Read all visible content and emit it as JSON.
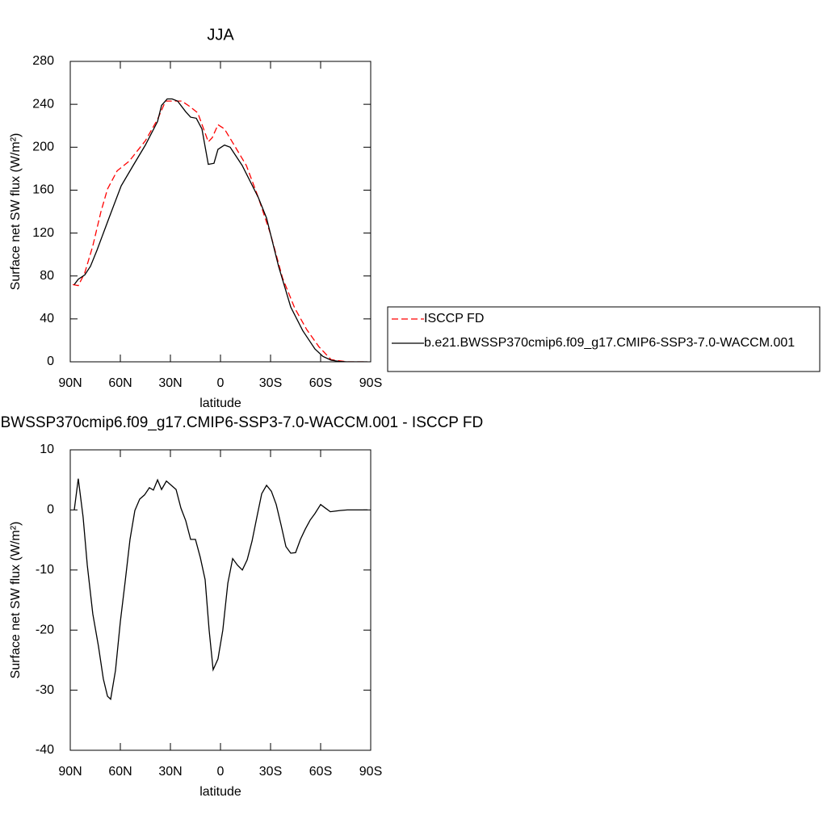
{
  "chart_data": [
    {
      "type": "line",
      "title": "JJA",
      "xlabel": "latitude",
      "ylabel": "Surface net SW flux (W/m²)",
      "xlim": [
        90,
        -90
      ],
      "xticks": [
        {
          "value": 90,
          "label": "90N"
        },
        {
          "value": 60,
          "label": "60N"
        },
        {
          "value": 30,
          "label": "30N"
        },
        0,
        {
          "value": -30,
          "label": "30S"
        },
        {
          "value": -60,
          "label": "60S"
        },
        {
          "value": -90,
          "label": "90S"
        }
      ],
      "ylim": [
        0,
        280
      ],
      "yticks": [
        0,
        40,
        80,
        120,
        160,
        200,
        240,
        280
      ],
      "legend": "right",
      "series": [
        {
          "name": "ISCCP FD",
          "color": "#ff0000",
          "linestyle": "dashed",
          "x": [
            88.5,
            85.2,
            81.3,
            76.5,
            71.6,
            67.7,
            61.9,
            54.7,
            45,
            37.7,
            32.9,
            28,
            23.2,
            18.4,
            13.6,
            7.3,
            4.9,
            1.5,
            -2.4,
            -8.2,
            -15.5,
            -22.7,
            -30,
            -37.2,
            -44.5,
            -51.7,
            -59,
            -66.3,
            -76,
            -88
          ],
          "values": [
            72,
            71,
            83,
            108,
            140,
            161,
            178,
            187,
            206,
            226,
            243,
            243,
            243,
            238,
            232,
            205,
            209,
            221,
            217,
            202,
            183,
            153,
            119,
            78,
            50,
            30,
            14,
            2,
            0,
            0
          ]
        },
        {
          "name": "b.e21.BWSSP370cmip6.f09_g17.CMIP6-SSP3-7.0-WACCM.001",
          "color": "#000000",
          "linestyle": "solid",
          "x": [
            87.6,
            85.2,
            81.3,
            77.9,
            74,
            66.8,
            59.5,
            52.3,
            45,
            37.7,
            35.3,
            31.9,
            29,
            25.7,
            20.8,
            17.9,
            14.5,
            11.1,
            7.3,
            3.9,
            1.5,
            -2.4,
            -5.8,
            -13,
            -22.7,
            -27.6,
            -34.8,
            -42.1,
            -49.3,
            -56.6,
            -61.4,
            -66.3,
            -71.1,
            -76,
            -88
          ],
          "values": [
            72,
            77,
            81,
            89,
            104,
            134,
            164,
            183,
            202,
            224,
            239,
            245,
            245,
            243,
            233,
            228,
            227,
            217,
            184,
            185,
            198,
            202,
            200,
            183,
            153,
            134,
            89,
            51,
            29,
            12,
            5,
            1.5,
            0.4,
            0,
            0
          ]
        }
      ]
    },
    {
      "type": "line",
      "title": "b.e21.BWSSP370cmip6.f09_g17.CMIP6-SSP3-7.0-WACCM.001 - ISCCP FD",
      "xlabel": "latitude",
      "ylabel": "Surface net SW flux (W/m²)",
      "xlim": [
        90,
        -90
      ],
      "xticks": [
        {
          "value": 90,
          "label": "90N"
        },
        {
          "value": 60,
          "label": "60N"
        },
        {
          "value": 30,
          "label": "30N"
        },
        0,
        {
          "value": -30,
          "label": "30S"
        },
        {
          "value": -60,
          "label": "60S"
        },
        {
          "value": -90,
          "label": "90S"
        }
      ],
      "ylim": [
        -40,
        10
      ],
      "yticks": [
        -40,
        -30,
        -20,
        -10,
        0,
        10
      ],
      "series": [
        {
          "color": "#000000",
          "linestyle": "solid",
          "x": [
            87.6,
            85.2,
            82.3,
            79.8,
            76.5,
            73.1,
            70.2,
            67.7,
            65.8,
            62.9,
            60,
            57.1,
            54.2,
            51.3,
            48.4,
            45.5,
            42.6,
            40.2,
            37.7,
            35.3,
            32.4,
            29.5,
            26.6,
            23.7,
            20.8,
            17.9,
            15,
            12.1,
            9.2,
            6.8,
            4.4,
            1.5,
            -1.4,
            -4.4,
            -7.3,
            -10.2,
            -13.1,
            -16,
            -18.9,
            -21.8,
            -24.7,
            -27.6,
            -30.5,
            -33.4,
            -36.3,
            -39.2,
            -42.1,
            -45,
            -47.9,
            -50.8,
            -53.7,
            -56.6,
            -60,
            -62.9,
            -65.8,
            -68.7,
            -71.6,
            -76,
            -88.1
          ],
          "values": [
            0,
            5.2,
            -1.2,
            -9.2,
            -17.3,
            -22.7,
            -28.1,
            -31,
            -31.5,
            -26.7,
            -18.6,
            -11.9,
            -4.9,
            -0.1,
            1.8,
            2.5,
            3.7,
            3.3,
            5,
            3.4,
            4.8,
            4.1,
            3.4,
            0.3,
            -1.8,
            -4.9,
            -4.9,
            -7.9,
            -11.6,
            -20,
            -26.6,
            -24.8,
            -20,
            -12.2,
            -8.1,
            -9.2,
            -10,
            -8.3,
            -5.2,
            -1.2,
            2.7,
            4.1,
            3.1,
            0.9,
            -2.5,
            -6.1,
            -7.2,
            -7.1,
            -4.9,
            -3.2,
            -1.7,
            -0.6,
            0.9,
            0.3,
            -0.3,
            -0.2,
            -0.1,
            0,
            0
          ]
        }
      ]
    }
  ]
}
